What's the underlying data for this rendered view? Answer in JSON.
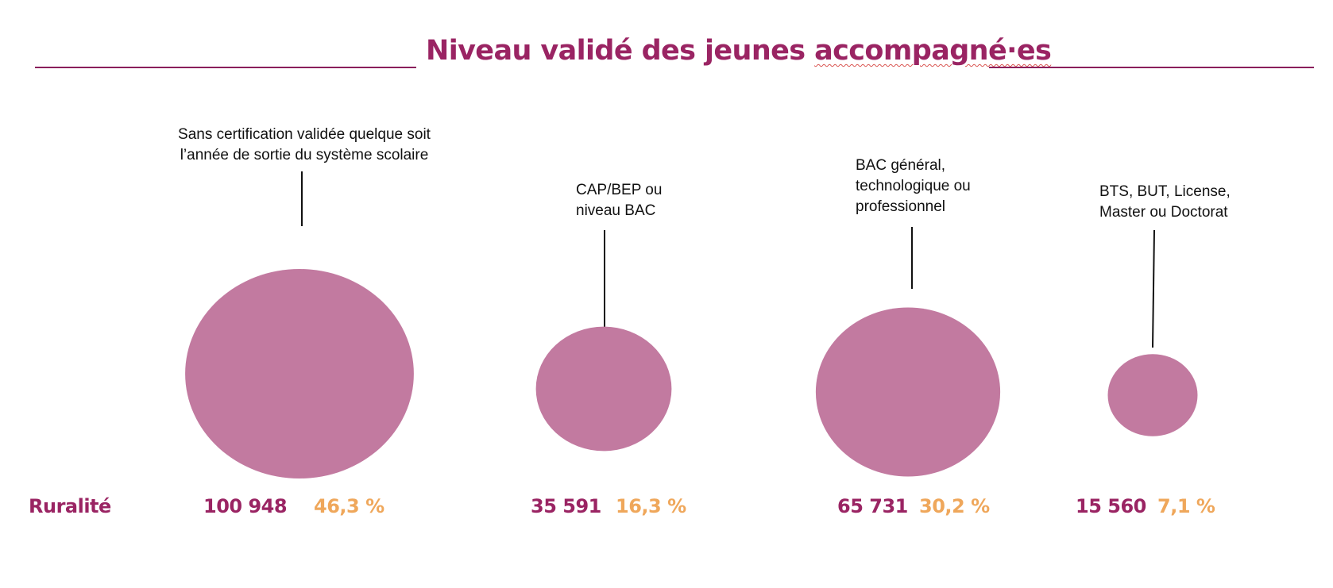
{
  "title": {
    "prefix": "Niveau validé des jeunes ",
    "underlined": "accompagné·es"
  },
  "row_label": "Ruralité",
  "colors": {
    "accent": "#9a2463",
    "bubble": "#c27aa0",
    "percent": "#efa75b",
    "rule": "#8a1f5c"
  },
  "chart_data": {
    "type": "bubble",
    "title": "Niveau validé des jeunes accompagné·es",
    "categories": [
      "Sans certification validée quelque soit\nl’année de sortie du système scolaire",
      "CAP/BEP ou\nniveau BAC",
      "BAC général,\ntechnologique ou\nprofessionnel",
      "BTS, BUT, License,\nMaster ou Doctorat"
    ],
    "values": [
      100948,
      35591,
      65731,
      15560
    ],
    "value_labels": [
      "100 948",
      "35 591",
      "65 731",
      "15 560"
    ],
    "percent_labels": [
      "46,3 %",
      "16,3 %",
      "30,2 %",
      "7,1 %"
    ],
    "percents": [
      46.3,
      16.3,
      30.2,
      7.1
    ],
    "row": "Ruralité"
  }
}
